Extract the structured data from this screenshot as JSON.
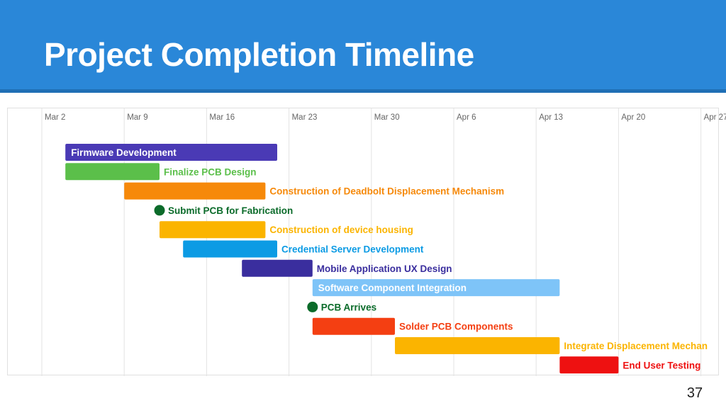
{
  "slide": {
    "title": "Project Completion Timeline",
    "page_number": "37"
  },
  "chart_data": {
    "type": "gantt",
    "axis_ticks": [
      "Mar 2",
      "Mar 9",
      "Mar 16",
      "Mar 23",
      "Mar 30",
      "Apr 6",
      "Apr 13",
      "Apr 20",
      "Apr 27"
    ],
    "tick_days": [
      0,
      7,
      14,
      21,
      28,
      35,
      42,
      49,
      56
    ],
    "grid": true,
    "tasks": [
      {
        "name": "Firmware Development",
        "start": 2,
        "end": 20,
        "color": "#4a3ab5",
        "label": "inside",
        "label_color": "#ffffff"
      },
      {
        "name": "Finalize PCB Design",
        "start": 2,
        "end": 10,
        "color": "#5bbf4a",
        "label": "right",
        "label_color": "#5bbf4a"
      },
      {
        "name": "Construction of Deadbolt Displacement Mechanism",
        "start": 7,
        "end": 19,
        "color": "#f6890a",
        "label": "right",
        "label_color": "#f6890a"
      },
      {
        "name": "Submit PCB for Fabrication",
        "start": 10,
        "end": 10,
        "milestone": true,
        "color": "#0b6b2a",
        "label": "right",
        "label_color": "#0b6b2a"
      },
      {
        "name": "Construction of device housing",
        "start": 10,
        "end": 19,
        "color": "#fbb400",
        "label": "right",
        "label_color": "#fbb400"
      },
      {
        "name": "Credential Server Development",
        "start": 12,
        "end": 20,
        "color": "#0c9be4",
        "label": "right",
        "label_color": "#0c9be4"
      },
      {
        "name": "Mobile Application UX Design",
        "start": 17,
        "end": 23,
        "color": "#3a2e9e",
        "label": "right",
        "label_color": "#3a2e9e"
      },
      {
        "name": "Software Component Integration",
        "start": 23,
        "end": 44,
        "color": "#7ec4f8",
        "label": "inside",
        "label_color": "#ffffff"
      },
      {
        "name": "PCB Arrives",
        "start": 23,
        "end": 23,
        "milestone": true,
        "color": "#0b6b2a",
        "label": "right",
        "label_color": "#0b6b2a"
      },
      {
        "name": "Solder PCB Components",
        "start": 23,
        "end": 30,
        "color": "#f43f12",
        "label": "right",
        "label_color": "#f43f12"
      },
      {
        "name": "Integrate Displacement Mechan",
        "start": 30,
        "end": 44,
        "color": "#fbb400",
        "label": "right",
        "label_color": "#fbb400"
      },
      {
        "name": "End User Testing",
        "start": 44,
        "end": 49,
        "color": "#ee1111",
        "label": "right",
        "label_color": "#ee1111"
      }
    ]
  }
}
